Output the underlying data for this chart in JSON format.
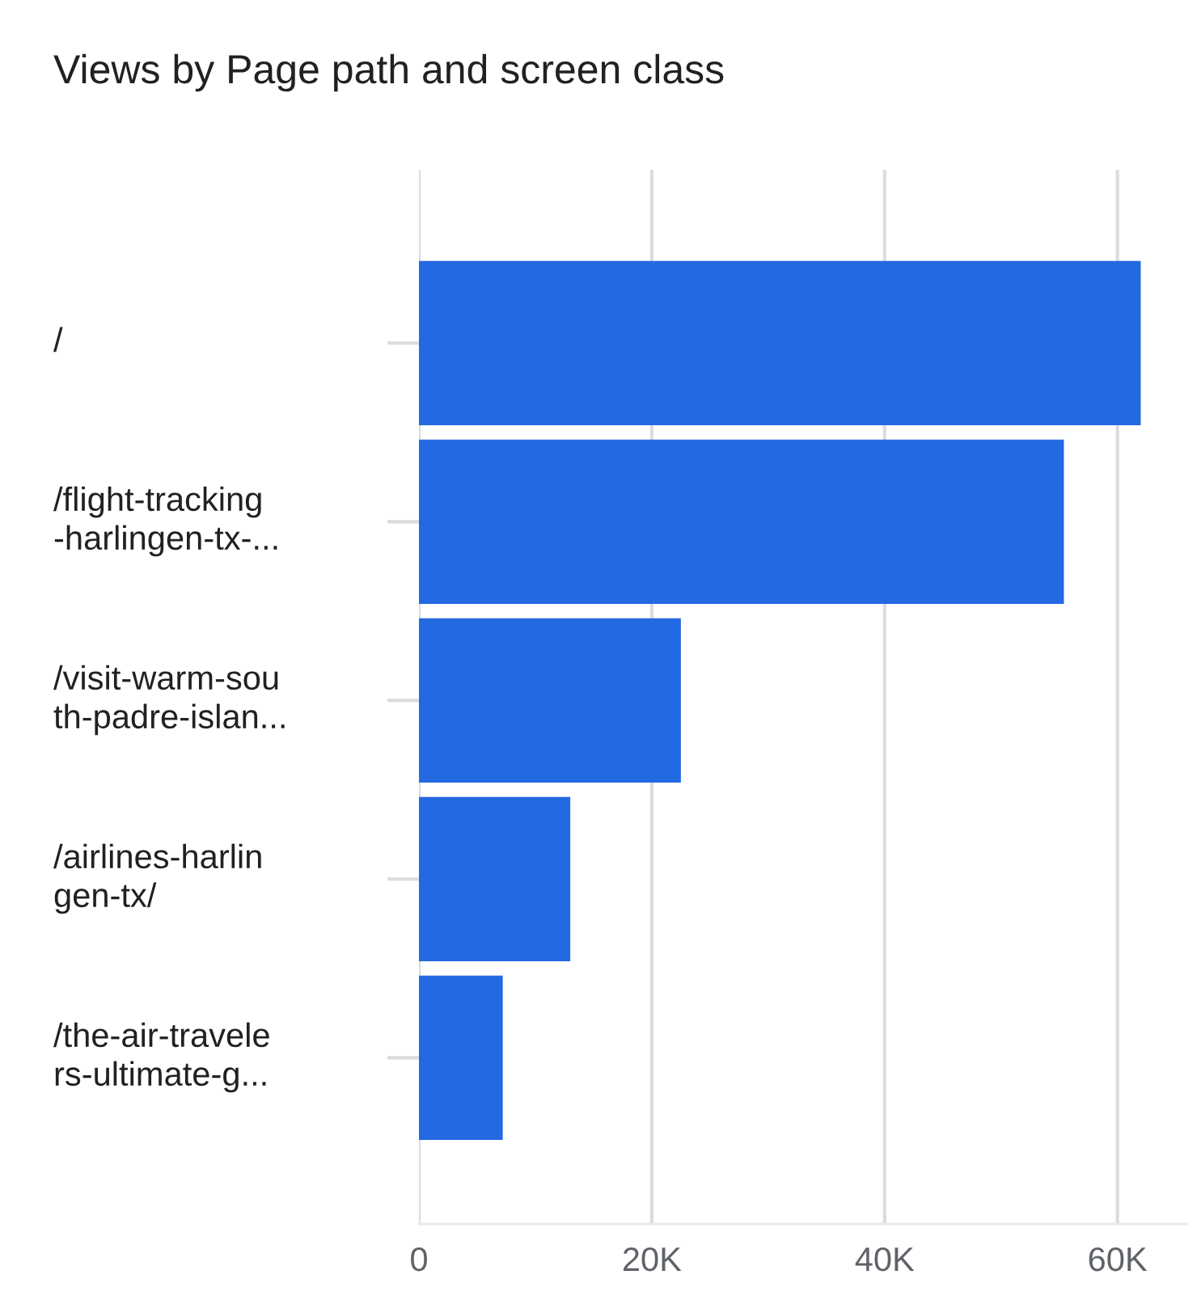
{
  "chart_data": {
    "type": "bar",
    "orientation": "horizontal",
    "title": "Views by Page path and screen class",
    "categories": [
      "/",
      "/flight-tracking\n-harlingen-tx-...",
      "/visit-warm-sou\nth-padre-islan...",
      "/airlines-harlin\ngen-tx/",
      "/the-air-travele\nrs-ultimate-g..."
    ],
    "values": [
      62000,
      55400,
      22500,
      13000,
      7200
    ],
    "color": "#2369e2",
    "xlim": [
      0,
      66000
    ],
    "xticks": [
      {
        "value": 0,
        "label": "0"
      },
      {
        "value": 20000,
        "label": "20K"
      },
      {
        "value": 40000,
        "label": "40K"
      },
      {
        "value": 60000,
        "label": "60K"
      }
    ],
    "grid": "x"
  }
}
